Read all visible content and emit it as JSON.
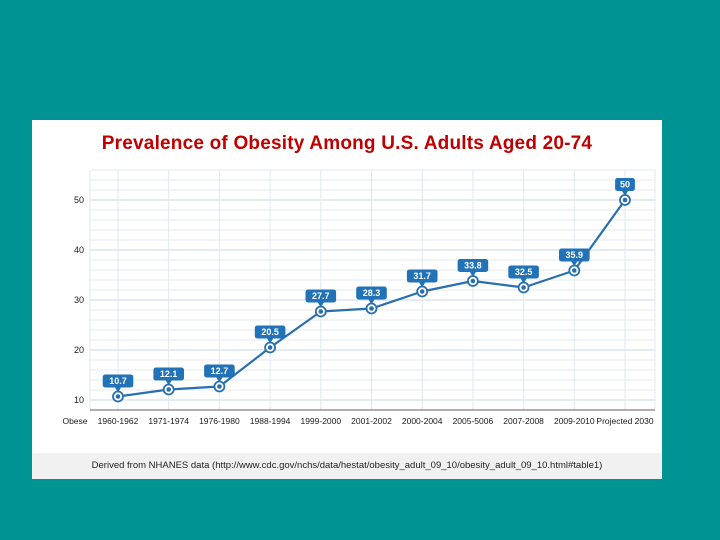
{
  "slide": {
    "background_color": "#009393",
    "panel_background": "#ffffff",
    "title": "Prevalence of Obesity Among U.S. Adults Aged 20-74",
    "title_color": "#c00000",
    "footnote": "Derived from NHANES data (http://www.cdc.gov/nchs/data/hestat/obesity_adult_09_10/obesity_adult_09_10.html#table1)"
  },
  "chart_data": {
    "type": "line",
    "title": "Prevalence of Obesity Among U.S. Adults Aged 20-74",
    "axis_corner_label": "Obese",
    "categories": [
      "1960-1962",
      "1971-1974",
      "1976-1980",
      "1988-1994",
      "1999-2000",
      "2001-2002",
      "2000-2004",
      "2005-5006",
      "2007-2008",
      "2009-2010",
      "Projected 2030"
    ],
    "values": [
      10.7,
      12.1,
      12.7,
      20.5,
      27.7,
      28.3,
      31.7,
      33.8,
      32.5,
      35.9,
      50
    ],
    "data_labels": [
      "10.7",
      "12.1",
      "12.7",
      "20.5",
      "27.7",
      "28.3",
      "31.7",
      "33.8",
      "32.5",
      "35.9",
      "50"
    ],
    "xlabel": "",
    "ylabel": "",
    "y_ticks": [
      10,
      20,
      30,
      40,
      50
    ],
    "ylim": [
      8,
      56
    ],
    "grid": true,
    "minor_grid_step": 2,
    "legend": "none",
    "colors": {
      "line": "#2a6fad",
      "marker_fill": "#ffffff",
      "marker_dot": "#2a6fad",
      "label_box": "#2272b8",
      "label_text": "#ffffff",
      "grid_minor": "#e4ebf2",
      "grid_major": "#c9d7e4",
      "grid_vertical": "#dfe8f0",
      "axis_line": "#7f7f7f",
      "tick_text": "#1a1a1a"
    }
  }
}
